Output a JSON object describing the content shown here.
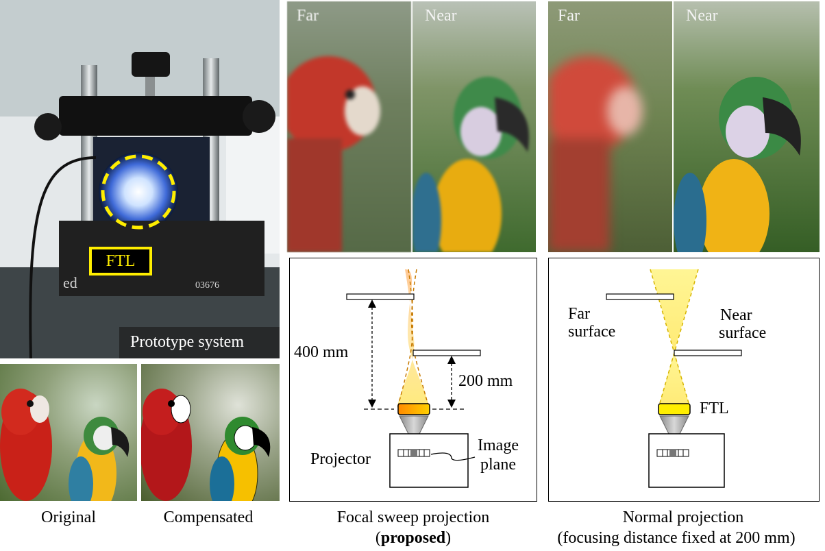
{
  "prototype": {
    "ftl_tag": "FTL",
    "caption": "Prototype system"
  },
  "thumbnails": {
    "original": "Original",
    "compensated": "Compensated"
  },
  "panels": {
    "focal_sweep": {
      "far": "Far",
      "near": "Near"
    },
    "normal": {
      "far": "Far",
      "near": "Near"
    }
  },
  "diagram_focal": {
    "dist_far": "400 mm",
    "dist_near": "200 mm",
    "projector": "Projector",
    "image_plane_1": "Image",
    "image_plane_2": "plane"
  },
  "diagram_normal": {
    "far_surface_1": "Far",
    "far_surface_2": "surface",
    "near_surface_1": "Near",
    "near_surface_2": "surface",
    "ftl": "FTL"
  },
  "captions": {
    "focal_line1": "Focal sweep projection",
    "focal_open": "(",
    "focal_bold": "proposed",
    "focal_close": ")",
    "normal_line1": "Normal projection",
    "normal_line2": "(focusing distance fixed at 200 mm)"
  },
  "colors": {
    "ftl_yellow": "#ffee00",
    "beam_yellow": "#ffe866",
    "beam_orange": "#ff9a3c",
    "text_dark": "#111111"
  }
}
